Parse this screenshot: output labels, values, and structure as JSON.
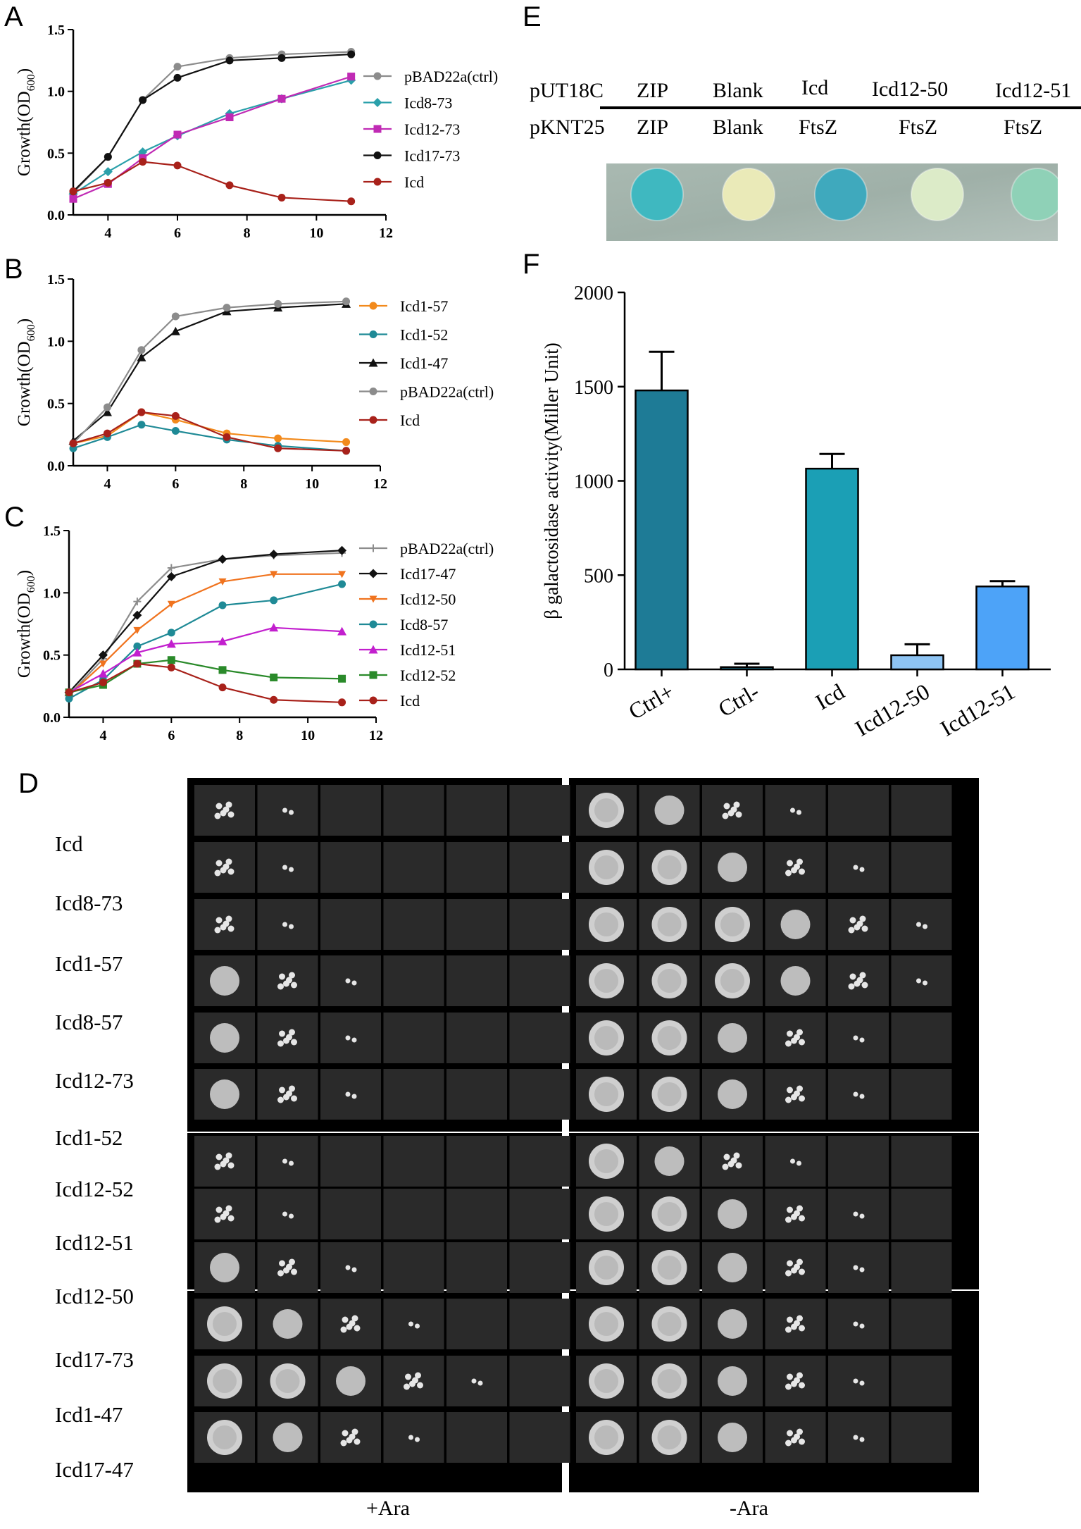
{
  "panel_letters": [
    "A",
    "B",
    "C",
    "D",
    "E",
    "F"
  ],
  "chart_data": [
    {
      "id": "A",
      "type": "line",
      "ylabel": "Growth(OD600)",
      "ylabel_main": "Growth(OD",
      "ylabel_sub": "600",
      "ylabel_close": ")",
      "xlim": [
        3,
        12
      ],
      "ylim": [
        0,
        1.5
      ],
      "xticks": [
        4,
        6,
        8,
        10,
        12
      ],
      "yticks": [
        0.0,
        0.5,
        1.0,
        1.5
      ],
      "x": [
        3,
        4,
        5,
        6,
        7.5,
        9,
        11
      ],
      "series": [
        {
          "name": "pBAD22a(ctrl)",
          "color": "#8c8c8c",
          "marker": "circle",
          "values": [
            0.18,
            0.47,
            0.93,
            1.2,
            1.27,
            1.3,
            1.32
          ]
        },
        {
          "name": "Icd8-73",
          "color": "#2aa0aa",
          "marker": "diamond",
          "values": [
            0.17,
            0.35,
            0.51,
            0.64,
            0.82,
            0.94,
            1.09
          ]
        },
        {
          "name": "Icd12-73",
          "color": "#c02ab4",
          "marker": "square",
          "values": [
            0.13,
            0.25,
            0.46,
            0.65,
            0.79,
            0.94,
            1.12
          ]
        },
        {
          "name": "Icd17-73",
          "color": "#111111",
          "marker": "circle",
          "values": [
            0.19,
            0.47,
            0.93,
            1.11,
            1.25,
            1.27,
            1.3
          ]
        },
        {
          "name": "Icd",
          "color": "#a8211a",
          "marker": "circle",
          "values": [
            0.19,
            0.26,
            0.43,
            0.4,
            0.24,
            0.14,
            0.11
          ]
        }
      ]
    },
    {
      "id": "B",
      "type": "line",
      "ylabel": "Growth(OD600)",
      "ylabel_main": "Growth(OD",
      "ylabel_sub": "600",
      "ylabel_close": ")",
      "xlim": [
        3,
        12
      ],
      "ylim": [
        0,
        1.5
      ],
      "xticks": [
        4,
        6,
        8,
        10,
        12
      ],
      "yticks": [
        0.0,
        0.5,
        1.0,
        1.5
      ],
      "x": [
        3,
        4,
        5,
        6,
        7.5,
        9,
        11
      ],
      "series": [
        {
          "name": "Icd1-57",
          "color": "#f28a1c",
          "marker": "circle",
          "values": [
            0.18,
            0.24,
            0.43,
            0.37,
            0.26,
            0.22,
            0.19
          ]
        },
        {
          "name": "Icd1-52",
          "color": "#1f8a96",
          "marker": "circle",
          "values": [
            0.14,
            0.23,
            0.33,
            0.28,
            0.21,
            0.16,
            0.12
          ]
        },
        {
          "name": "Icd1-47",
          "color": "#111111",
          "marker": "triangle",
          "values": [
            0.2,
            0.43,
            0.87,
            1.08,
            1.24,
            1.27,
            1.3
          ]
        },
        {
          "name": "pBAD22a(ctrl)",
          "color": "#8c8c8c",
          "marker": "circle",
          "values": [
            0.18,
            0.47,
            0.93,
            1.2,
            1.27,
            1.3,
            1.32
          ]
        },
        {
          "name": "Icd",
          "color": "#a8211a",
          "marker": "circle",
          "values": [
            0.18,
            0.26,
            0.43,
            0.4,
            0.23,
            0.14,
            0.12
          ]
        }
      ]
    },
    {
      "id": "C",
      "type": "line",
      "ylabel": "Growth(OD600)",
      "ylabel_main": "Growth(OD",
      "ylabel_sub": "600",
      "ylabel_close": ")",
      "xlim": [
        3,
        12
      ],
      "ylim": [
        0,
        1.5
      ],
      "xticks": [
        4,
        6,
        8,
        10,
        12
      ],
      "yticks": [
        0.0,
        0.5,
        1.0,
        1.5
      ],
      "x": [
        3,
        4,
        5,
        6,
        7.5,
        9,
        11
      ],
      "series": [
        {
          "name": "pBAD22a(ctrl)",
          "color": "#8c8c8c",
          "marker": "plus",
          "values": [
            0.18,
            0.47,
            0.93,
            1.2,
            1.27,
            1.3,
            1.32
          ]
        },
        {
          "name": "Icd17-47",
          "color": "#111111",
          "marker": "diamond",
          "values": [
            0.2,
            0.5,
            0.82,
            1.13,
            1.27,
            1.31,
            1.34
          ]
        },
        {
          "name": "Icd12-50",
          "color": "#f0731e",
          "marker": "tri-down",
          "values": [
            0.18,
            0.43,
            0.7,
            0.91,
            1.09,
            1.15,
            1.15
          ]
        },
        {
          "name": "Icd8-57",
          "color": "#1f8a96",
          "marker": "circle",
          "values": [
            0.15,
            0.3,
            0.57,
            0.68,
            0.9,
            0.94,
            1.07
          ]
        },
        {
          "name": "Icd12-51",
          "color": "#c21fce",
          "marker": "tri-up",
          "values": [
            0.2,
            0.35,
            0.52,
            0.59,
            0.61,
            0.72,
            0.69
          ]
        },
        {
          "name": "Icd12-52",
          "color": "#2a8a2a",
          "marker": "square",
          "values": [
            0.2,
            0.26,
            0.43,
            0.46,
            0.38,
            0.32,
            0.31
          ]
        },
        {
          "name": "Icd",
          "color": "#a8211a",
          "marker": "circle",
          "values": [
            0.2,
            0.28,
            0.43,
            0.4,
            0.24,
            0.14,
            0.12
          ]
        }
      ]
    },
    {
      "id": "F",
      "type": "bar",
      "ylabel": "β galactosidase activity(Miller Unit)",
      "ylim": [
        0,
        2000
      ],
      "yticks": [
        0,
        500,
        1000,
        1500,
        2000
      ],
      "categories": [
        "Ctrl+",
        "Ctrl-",
        "Icd",
        "Icd12-50",
        "Icd12-51"
      ],
      "values": [
        1480,
        12,
        1065,
        75,
        440
      ],
      "errors": [
        205,
        18,
        78,
        58,
        28
      ],
      "colors": [
        "#1e7b96",
        "#1e7b96",
        "#1b9fb5",
        "#8ec4f3",
        "#4da3f8"
      ]
    }
  ],
  "panel_e": {
    "row1_label": "pUT18C",
    "row2_label": "pKNT25",
    "row1": [
      "ZIP",
      "Blank",
      "Icd",
      "Icd12-50",
      "Icd12-51"
    ],
    "row2": [
      "ZIP",
      "Blank",
      "FtsZ",
      "FtsZ",
      "FtsZ"
    ],
    "spot_colors": [
      "#3fb8c0",
      "#eaeab8",
      "#3fa9bd",
      "#dcebc8",
      "#8fd1b7"
    ]
  },
  "panel_d": {
    "row_labels": [
      "Icd",
      "Icd8-73",
      "Icd1-57",
      "Icd8-57",
      "Icd12-73",
      "Icd1-52",
      "Icd12-52",
      "Icd12-51",
      "Icd12-50",
      "Icd17-73",
      "Icd1-47",
      "Icd17-47"
    ],
    "plus_label": "+Ara",
    "minus_label": "-Ara",
    "plus_counts": [
      2,
      2,
      2,
      3,
      3,
      3,
      2,
      2,
      3,
      4,
      5,
      4
    ],
    "minus_counts": [
      4,
      5,
      6,
      6,
      5,
      5,
      4,
      5,
      5,
      5,
      5,
      5
    ]
  }
}
